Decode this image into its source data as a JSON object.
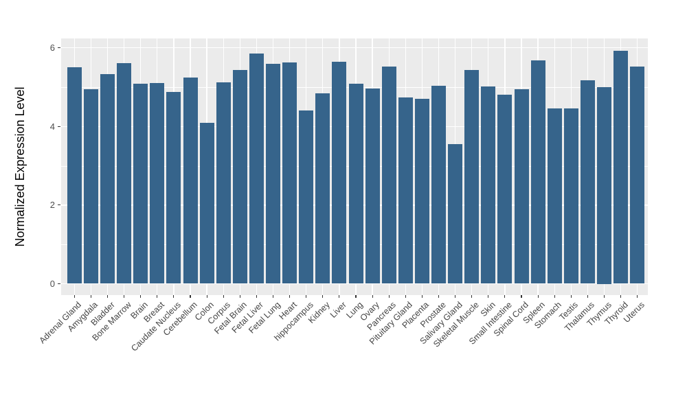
{
  "chart_data": {
    "type": "bar",
    "title": "",
    "xlabel": "",
    "ylabel": "Normalized Expression Level",
    "ylim": [
      0,
      6.2
    ],
    "yticks": [
      0,
      2,
      4,
      6
    ],
    "minor_yticks": [
      1,
      3,
      5
    ],
    "grid": true,
    "legend_position": "none",
    "categories": [
      "Adrenal Gland",
      "Amygdala",
      "Bladder",
      "Bone Marrow",
      "Brain",
      "Breast",
      "Caudate Nucleus",
      "Cerebellum",
      "Colon",
      "Corpus",
      "Fetal Brain",
      "Fetal Liver",
      "Fetal Lung",
      "Heart",
      "hippocampus",
      "Kidney",
      "Liver",
      "Lung",
      "Ovary",
      "Pancreas",
      "Pituitary Gland",
      "Placenta",
      "Prostate",
      "Salivary Gland",
      "Skeletal Muscle",
      "Skin",
      "Small Intestine",
      "Spinal Cord",
      "Spleen",
      "Stomach",
      "Testis",
      "Thalamus",
      "Thymus",
      "Thyroid",
      "Uterus"
    ],
    "values": [
      5.51,
      4.95,
      5.33,
      5.61,
      5.09,
      5.11,
      4.87,
      5.24,
      4.1,
      5.12,
      5.43,
      5.86,
      5.59,
      5.63,
      4.41,
      4.84,
      5.65,
      5.09,
      4.97,
      5.52,
      4.74,
      4.7,
      5.04,
      3.56,
      5.44,
      5.02,
      4.81,
      4.95,
      5.68,
      4.46,
      4.46,
      5.17,
      5.0,
      5.93,
      5.53
    ],
    "colors": {
      "bar_fill": "#36648B",
      "panel_background": "#EBEBEB",
      "gridline": "#FFFFFF",
      "tick_mark": "#333333",
      "tick_label": "#4D4D4D",
      "axis_title": "#000000",
      "figure_background": "#FFFFFF"
    }
  }
}
